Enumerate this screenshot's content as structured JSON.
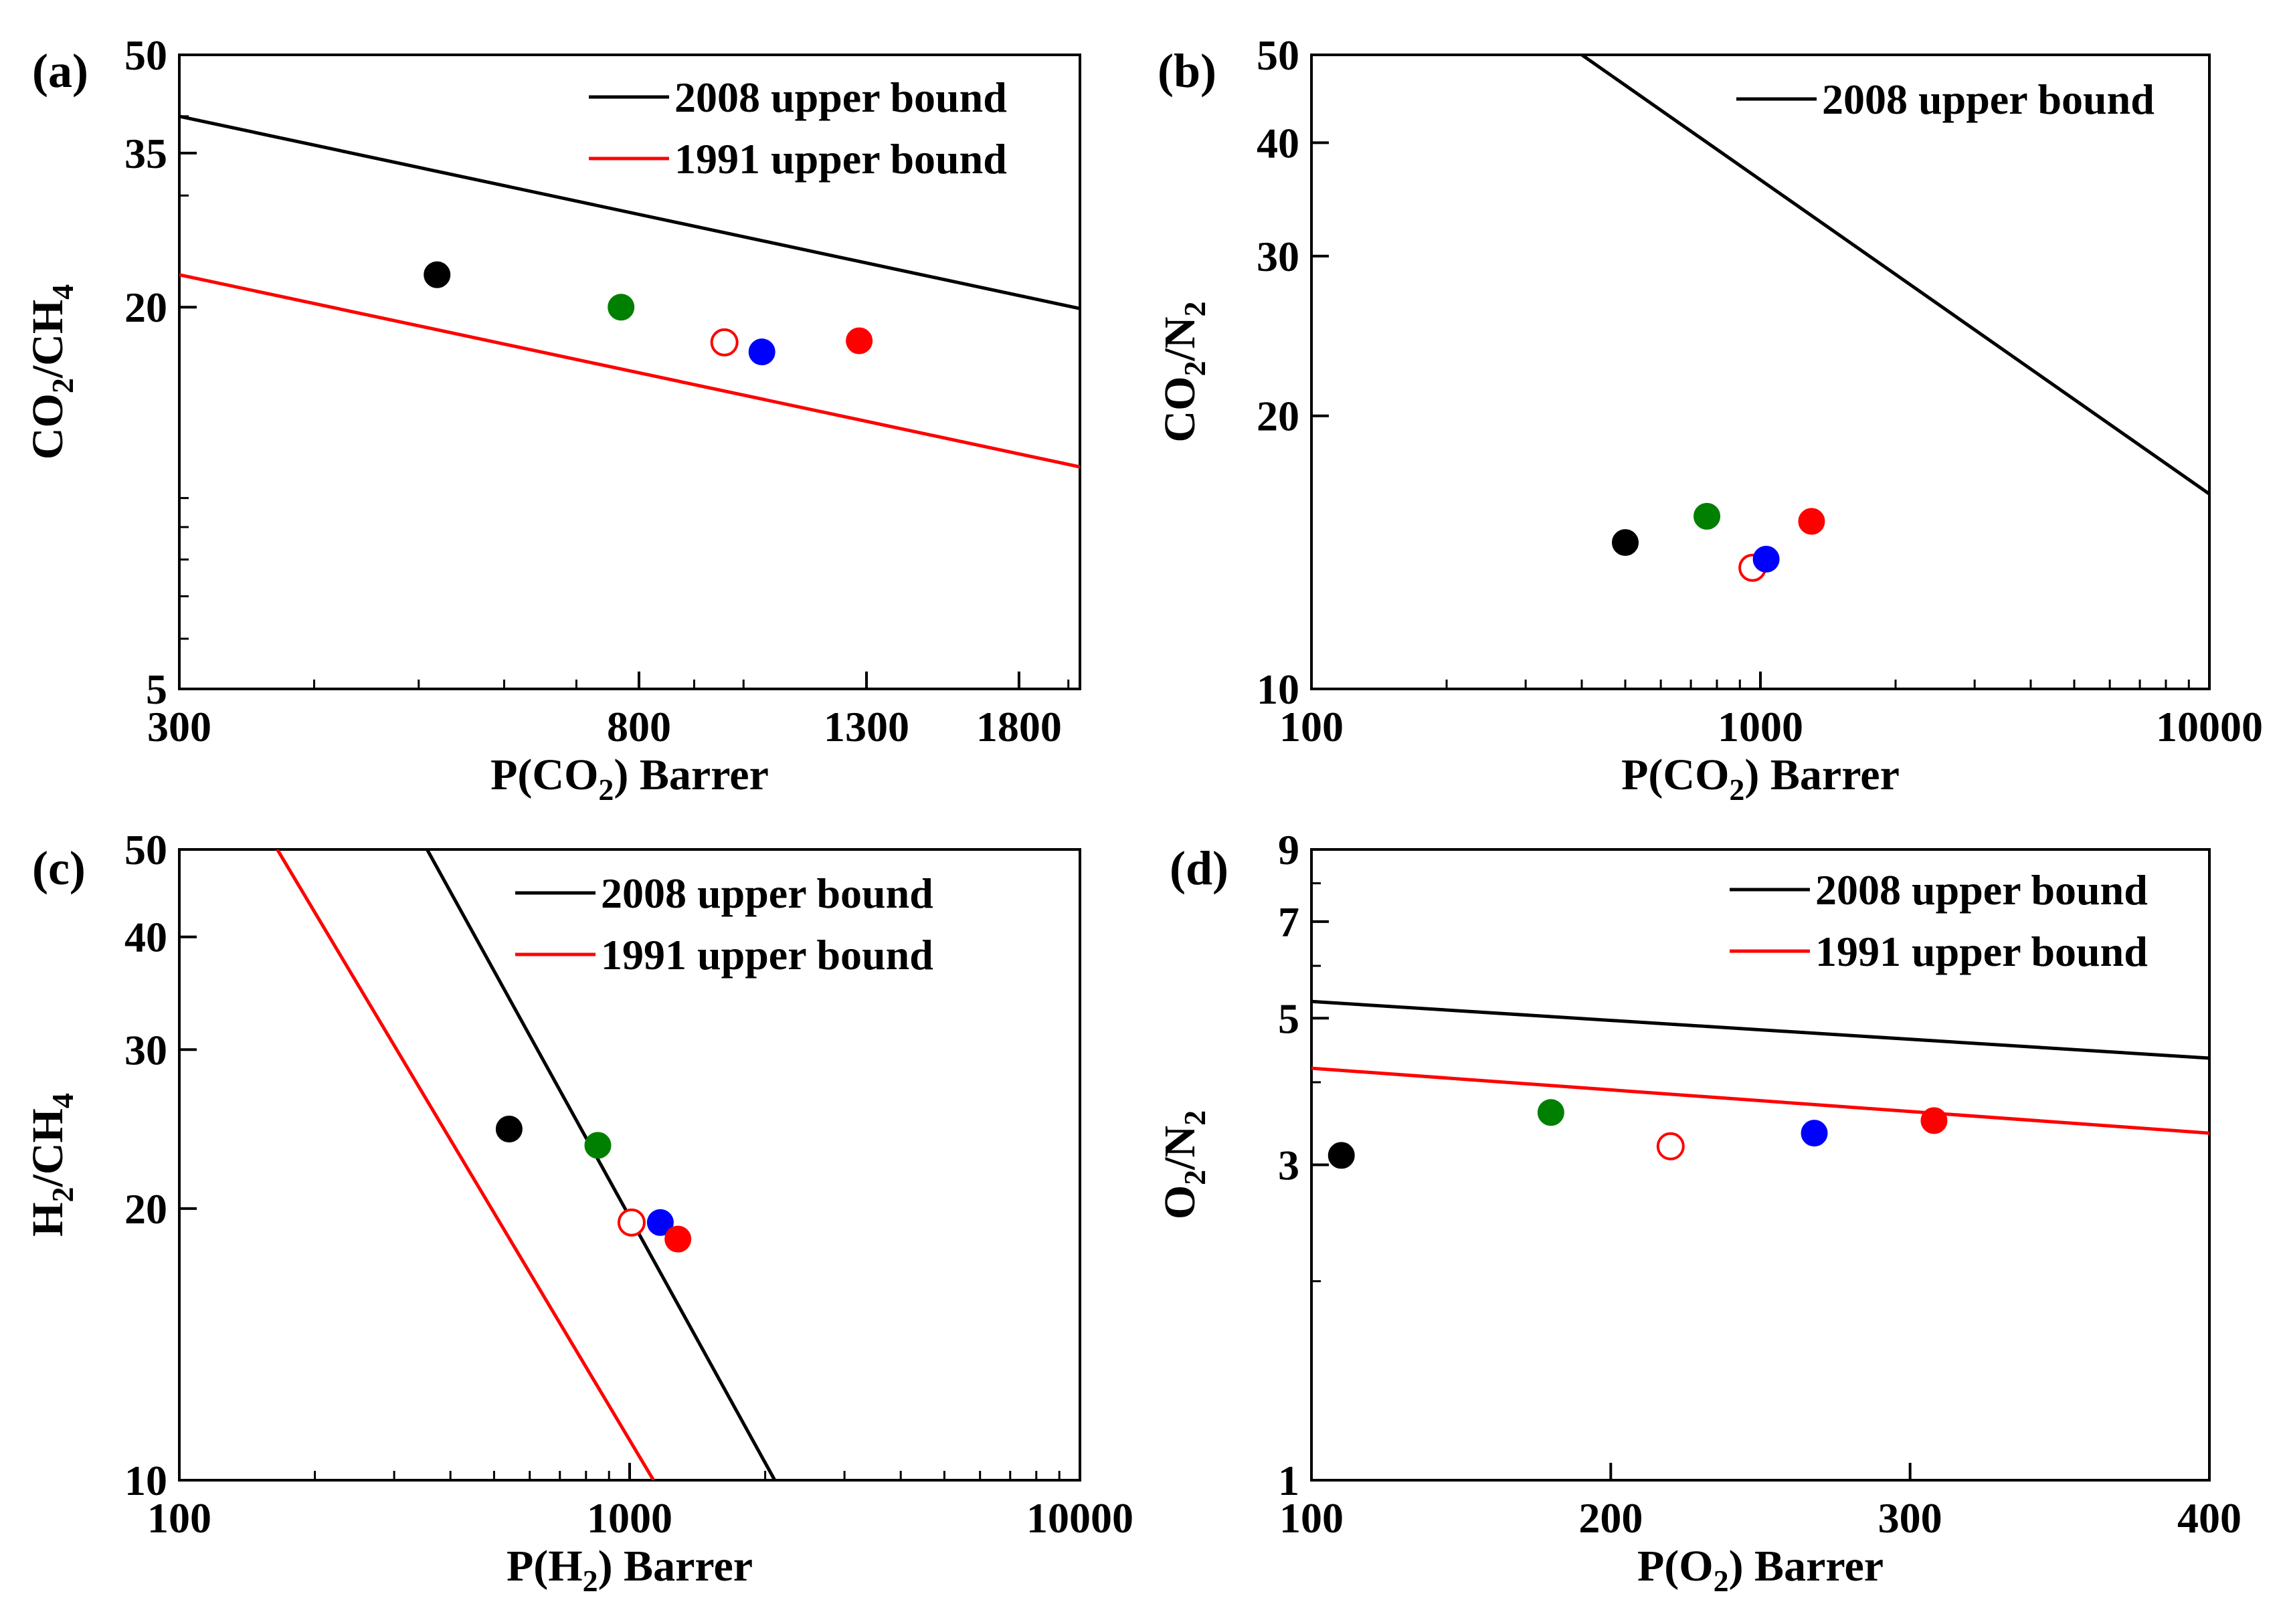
{
  "chart_data": [
    {
      "panel": "(a)",
      "type": "scatter",
      "scale": {
        "x": "log",
        "y": "log"
      },
      "xlim": [
        300,
        2050
      ],
      "ylim": [
        5,
        50
      ],
      "xticks": [
        300,
        800,
        1300,
        1800
      ],
      "yticks": [
        5,
        20,
        35,
        50
      ],
      "xlabel": {
        "pre": "P(CO",
        "sub": "2",
        "post": ") Barrer"
      },
      "ylabel": {
        "parts": [
          {
            "t": "CO",
            "s": false
          },
          {
            "t": "2",
            "s": true
          },
          {
            "t": "/CH",
            "s": false
          },
          {
            "t": "4",
            "s": true
          }
        ]
      },
      "legend": [
        {
          "label": "2008 upper bound",
          "color": "#000000"
        },
        {
          "label": "1991 upper bound",
          "color": "#ff0000"
        }
      ],
      "lines": [
        {
          "name": "2008 upper bound",
          "color": "#000000",
          "points": [
            [
              300,
              40
            ],
            [
              2050,
              19.9
            ]
          ]
        },
        {
          "name": "1991 upper bound",
          "color": "#ff0000",
          "points": [
            [
              300,
              22.5
            ],
            [
              2050,
              11.2
            ]
          ]
        }
      ],
      "points": [
        {
          "x": 520,
          "y": 22.5,
          "color": "#000000",
          "filled": true
        },
        {
          "x": 770,
          "y": 20,
          "color": "#008000",
          "filled": true
        },
        {
          "x": 960,
          "y": 17.6,
          "color": "#ff0000",
          "filled": false
        },
        {
          "x": 1040,
          "y": 17.0,
          "color": "#0000ff",
          "filled": true
        },
        {
          "x": 1280,
          "y": 17.7,
          "color": "#ff0000",
          "filled": true
        }
      ]
    },
    {
      "panel": "(b)",
      "type": "scatter",
      "scale": {
        "x": "log",
        "y": "log"
      },
      "xlim": [
        100,
        10000
      ],
      "ylim": [
        10,
        50
      ],
      "xticks": [
        100,
        1000,
        10000
      ],
      "yticks": [
        10,
        20,
        30,
        40,
        50
      ],
      "xlabel": {
        "pre": "P(CO",
        "sub": "2",
        "post": ") Barrer"
      },
      "ylabel": {
        "parts": [
          {
            "t": "CO",
            "s": false
          },
          {
            "t": "2",
            "s": true
          },
          {
            "t": "/N",
            "s": false
          },
          {
            "t": "2",
            "s": true
          }
        ]
      },
      "legend": [
        {
          "label": "2008 upper bound",
          "color": "#000000"
        }
      ],
      "lines": [
        {
          "name": "2008 upper bound",
          "color": "#000000",
          "points": [
            [
              400,
              50
            ],
            [
              10000,
              16.4
            ]
          ]
        }
      ],
      "points": [
        {
          "x": 500,
          "y": 14.5,
          "color": "#000000",
          "filled": true
        },
        {
          "x": 760,
          "y": 15.5,
          "color": "#008000",
          "filled": true
        },
        {
          "x": 960,
          "y": 13.6,
          "color": "#ff0000",
          "filled": false
        },
        {
          "x": 1030,
          "y": 13.9,
          "color": "#0000ff",
          "filled": true
        },
        {
          "x": 1300,
          "y": 15.3,
          "color": "#ff0000",
          "filled": true
        }
      ]
    },
    {
      "panel": "(c)",
      "type": "scatter",
      "scale": {
        "x": "log",
        "y": "log"
      },
      "xlim": [
        100,
        10000
      ],
      "ylim": [
        10,
        50
      ],
      "xticks": [
        100,
        1000,
        10000
      ],
      "yticks": [
        10,
        20,
        30,
        40,
        50
      ],
      "xlabel": {
        "pre": "P(H",
        "sub": "2",
        "post": ") Barrer"
      },
      "ylabel": {
        "parts": [
          {
            "t": "H",
            "s": false
          },
          {
            "t": "2",
            "s": true
          },
          {
            "t": "/CH",
            "s": false
          },
          {
            "t": "4",
            "s": true
          }
        ]
      },
      "legend": [
        {
          "label": "2008 upper bound",
          "color": "#000000"
        },
        {
          "label": "1991 upper bound",
          "color": "#ff0000"
        }
      ],
      "lines": [
        {
          "name": "2008 upper bound",
          "color": "#000000",
          "points": [
            [
              355,
              50
            ],
            [
              2100,
              10
            ]
          ]
        },
        {
          "name": "1991 upper bound",
          "color": "#ff0000",
          "points": [
            [
              165,
              50
            ],
            [
              1130,
              10
            ]
          ]
        }
      ],
      "points": [
        {
          "x": 540,
          "y": 24.5,
          "color": "#000000",
          "filled": true
        },
        {
          "x": 850,
          "y": 23.5,
          "color": "#008000",
          "filled": true
        },
        {
          "x": 1010,
          "y": 19.3,
          "color": "#ff0000",
          "filled": false
        },
        {
          "x": 1170,
          "y": 19.3,
          "color": "#0000ff",
          "filled": true
        },
        {
          "x": 1280,
          "y": 18.5,
          "color": "#ff0000",
          "filled": true
        }
      ]
    },
    {
      "panel": "(d)",
      "type": "scatter",
      "scale": {
        "x": "linear",
        "y": "log"
      },
      "xlim": [
        100,
        400
      ],
      "ylim": [
        1,
        9
      ],
      "xticks": [
        100,
        200,
        300,
        400
      ],
      "yticks": [
        1,
        3,
        5,
        7,
        9
      ],
      "xlabel": {
        "pre": "P(O",
        "sub": "2",
        "post": ") Barrer"
      },
      "ylabel": {
        "parts": [
          {
            "t": "O",
            "s": false
          },
          {
            "t": "2",
            "s": true
          },
          {
            "t": "/N",
            "s": false
          },
          {
            "t": "2",
            "s": true
          }
        ]
      },
      "legend": [
        {
          "label": "2008 upper bound",
          "color": "#000000"
        },
        {
          "label": "1991 upper bound",
          "color": "#ff0000"
        }
      ],
      "lines": [
        {
          "name": "2008 upper bound",
          "color": "#000000",
          "points": [
            [
              100,
              5.3
            ],
            [
              400,
              4.35
            ]
          ]
        },
        {
          "name": "1991 upper bound",
          "color": "#ff0000",
          "points": [
            [
              100,
              4.2
            ],
            [
              400,
              3.35
            ]
          ]
        }
      ],
      "points": [
        {
          "x": 110,
          "y": 3.1,
          "color": "#000000",
          "filled": true
        },
        {
          "x": 180,
          "y": 3.6,
          "color": "#008000",
          "filled": true
        },
        {
          "x": 220,
          "y": 3.2,
          "color": "#ff0000",
          "filled": false
        },
        {
          "x": 268,
          "y": 3.35,
          "color": "#0000ff",
          "filled": true
        },
        {
          "x": 308,
          "y": 3.5,
          "color": "#ff0000",
          "filled": true
        }
      ]
    }
  ]
}
